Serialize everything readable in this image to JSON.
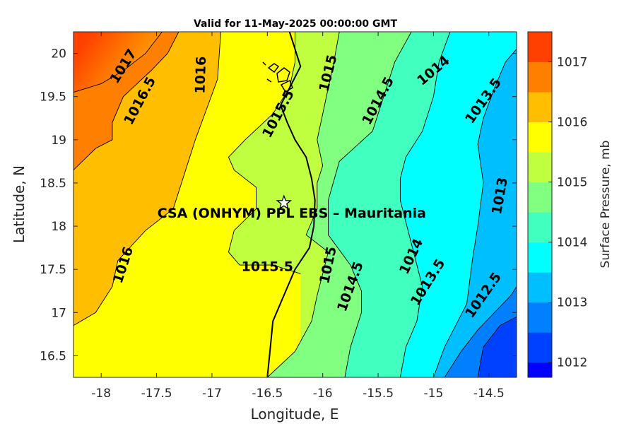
{
  "chart_data": {
    "type": "heatmap",
    "subtype": "filled-contour",
    "title": "Valid for 11-May-2025 00:00:00 GMT",
    "xlabel": "Longitude, E",
    "ylabel": "Latitude, N",
    "xlim": [
      -18.25,
      -14.25
    ],
    "ylim": [
      16.25,
      20.25
    ],
    "xticks": [
      "-18",
      "-17.5",
      "-17",
      "-16.5",
      "-16",
      "-15.5",
      "-15",
      "-14.5"
    ],
    "xtick_values": [
      -18,
      -17.5,
      -17,
      -16.5,
      -16,
      -15.5,
      -15,
      -14.5
    ],
    "yticks": [
      "16.5",
      "17",
      "17.5",
      "18",
      "18.5",
      "19",
      "19.5",
      "20"
    ],
    "ytick_values": [
      16.5,
      17,
      17.5,
      18,
      18.5,
      19,
      19.5,
      20
    ],
    "colorbar": {
      "label": "Surface Pressure, mb",
      "range": [
        1011.75,
        1017.5
      ],
      "ticks": [
        "1012",
        "1013",
        "1014",
        "1015",
        "1016",
        "1017"
      ],
      "tick_values": [
        1012,
        1013,
        1014,
        1015,
        1016,
        1017
      ],
      "levels": [
        1011.75,
        1012,
        1012.5,
        1013,
        1013.5,
        1014,
        1014.5,
        1015,
        1015.5,
        1016,
        1016.5,
        1017,
        1017.5
      ],
      "colors": [
        "#0000ff",
        "#0040ff",
        "#0080ff",
        "#00bfff",
        "#00ffff",
        "#40ffbf",
        "#80ff80",
        "#bfff40",
        "#ffff00",
        "#ffbf00",
        "#ff8000",
        "#ff4000",
        "#ff0000"
      ]
    },
    "isobars": [
      {
        "level": 1017,
        "points": [
          [
            -18.25,
            19.55
          ],
          [
            -18.0,
            19.65
          ],
          [
            -17.8,
            19.8
          ],
          [
            -17.6,
            20.0
          ],
          [
            -17.45,
            20.25
          ]
        ]
      },
      {
        "level": 1016.5,
        "points": [
          [
            -18.25,
            18.65
          ],
          [
            -18.05,
            18.9
          ],
          [
            -17.9,
            19.0
          ],
          [
            -17.9,
            19.2
          ],
          [
            -17.8,
            19.5
          ],
          [
            -17.55,
            19.8
          ],
          [
            -17.4,
            20.0
          ],
          [
            -17.3,
            20.25
          ]
        ]
      },
      {
        "level": 1016,
        "points": [
          [
            -18.25,
            16.85
          ],
          [
            -18.05,
            17.0
          ],
          [
            -17.9,
            17.3
          ],
          [
            -17.85,
            17.6
          ],
          [
            -17.6,
            17.95
          ],
          [
            -17.35,
            18.2
          ],
          [
            -17.25,
            18.6
          ],
          [
            -17.15,
            19.0
          ],
          [
            -17.05,
            19.35
          ],
          [
            -16.95,
            19.7
          ],
          [
            -16.92,
            20.25
          ]
        ]
      },
      {
        "level": 1015.5,
        "points": [
          [
            -16.2,
            17.45
          ],
          [
            -16.45,
            17.55
          ],
          [
            -16.75,
            17.55
          ],
          [
            -16.85,
            17.7
          ],
          [
            -16.8,
            17.95
          ],
          [
            -16.6,
            18.2
          ],
          [
            -16.6,
            18.45
          ],
          [
            -16.8,
            18.65
          ],
          [
            -16.85,
            18.8
          ],
          [
            -16.7,
            19.0
          ],
          [
            -16.45,
            19.3
          ],
          [
            -16.3,
            19.6
          ],
          [
            -16.25,
            19.9
          ],
          [
            -16.25,
            20.25
          ]
        ]
      },
      {
        "level": 1015,
        "points": [
          [
            -16.5,
            16.25
          ],
          [
            -16.25,
            16.55
          ],
          [
            -16.1,
            16.9
          ],
          [
            -16.05,
            17.2
          ],
          [
            -16.0,
            17.45
          ],
          [
            -15.95,
            17.7
          ],
          [
            -16.15,
            17.9
          ],
          [
            -16.05,
            18.2
          ],
          [
            -16.05,
            18.5
          ],
          [
            -16.0,
            18.7
          ],
          [
            -16.05,
            19.0
          ],
          [
            -16.0,
            19.3
          ],
          [
            -15.95,
            19.6
          ],
          [
            -15.9,
            19.9
          ],
          [
            -15.85,
            20.25
          ]
        ]
      },
      {
        "level": 1014.5,
        "points": [
          [
            -15.8,
            16.25
          ],
          [
            -15.75,
            16.6
          ],
          [
            -15.65,
            17.0
          ],
          [
            -15.65,
            17.25
          ],
          [
            -15.75,
            17.55
          ],
          [
            -15.95,
            17.9
          ],
          [
            -15.95,
            18.3
          ],
          [
            -15.85,
            18.75
          ],
          [
            -15.55,
            19.1
          ],
          [
            -15.45,
            19.5
          ],
          [
            -15.35,
            19.9
          ],
          [
            -15.2,
            20.25
          ]
        ]
      },
      {
        "level": 1014,
        "points": [
          [
            -15.3,
            16.25
          ],
          [
            -15.25,
            16.6
          ],
          [
            -15.15,
            16.9
          ],
          [
            -15.1,
            17.3
          ],
          [
            -15.2,
            17.8
          ],
          [
            -15.3,
            18.3
          ],
          [
            -15.3,
            18.55
          ],
          [
            -15.25,
            18.8
          ],
          [
            -15.1,
            19.1
          ],
          [
            -15.0,
            19.5
          ],
          [
            -14.95,
            19.9
          ],
          [
            -14.85,
            20.25
          ]
        ]
      },
      {
        "level": 1013.5,
        "points": [
          [
            -15.0,
            16.25
          ],
          [
            -14.9,
            16.6
          ],
          [
            -14.8,
            16.85
          ],
          [
            -14.7,
            17.1
          ],
          [
            -14.65,
            17.6
          ],
          [
            -14.6,
            18.0
          ],
          [
            -14.55,
            18.5
          ],
          [
            -14.6,
            18.95
          ],
          [
            -14.55,
            19.25
          ],
          [
            -14.45,
            19.6
          ],
          [
            -14.35,
            19.9
          ],
          [
            -14.25,
            20.05
          ]
        ]
      },
      {
        "level": 1013,
        "points": [
          [
            -14.9,
            16.25
          ],
          [
            -14.75,
            16.55
          ],
          [
            -14.6,
            16.8
          ],
          [
            -14.45,
            17.0
          ],
          [
            -14.3,
            17.2
          ],
          [
            -14.25,
            17.3
          ]
        ]
      },
      {
        "level": 1012.5,
        "points": [
          [
            -14.6,
            16.25
          ],
          [
            -14.55,
            16.6
          ],
          [
            -14.4,
            16.85
          ],
          [
            -14.25,
            16.95
          ]
        ]
      }
    ],
    "contour_labels": [
      {
        "text": "1017",
        "lon": -17.8,
        "lat": 19.85,
        "angle": -58
      },
      {
        "text": "1016.5",
        "lon": -17.65,
        "lat": 19.45,
        "angle": -62
      },
      {
        "text": "1016",
        "lon": -17.1,
        "lat": 19.75,
        "angle": -88
      },
      {
        "text": "1015.5",
        "lon": -16.4,
        "lat": 19.3,
        "angle": -62
      },
      {
        "text": "1015",
        "lon": -15.95,
        "lat": 19.77,
        "angle": -76
      },
      {
        "text": "1014.5",
        "lon": -15.5,
        "lat": 19.45,
        "angle": -62
      },
      {
        "text": "1014",
        "lon": -15.0,
        "lat": 19.8,
        "angle": -40
      },
      {
        "text": "1013.5",
        "lon": -14.55,
        "lat": 19.45,
        "angle": -55
      },
      {
        "text": "1013",
        "lon": -14.4,
        "lat": 18.35,
        "angle": -80
      },
      {
        "text": "1012.5",
        "lon": -14.55,
        "lat": 17.2,
        "angle": -55
      },
      {
        "text": "1016",
        "lon": -17.8,
        "lat": 17.55,
        "angle": -72
      },
      {
        "text": "1015.5",
        "lon": -16.5,
        "lat": 17.53,
        "angle": 0
      },
      {
        "text": "1015",
        "lon": -15.95,
        "lat": 17.55,
        "angle": -78
      },
      {
        "text": "1014.5",
        "lon": -15.75,
        "lat": 17.3,
        "angle": -70
      },
      {
        "text": "1014",
        "lon": -15.2,
        "lat": 17.65,
        "angle": -65
      },
      {
        "text": "1013.5",
        "lon": -15.05,
        "lat": 17.35,
        "angle": -58
      }
    ],
    "coastline": [
      [
        -16.5,
        16.25
      ],
      [
        -16.48,
        16.5
      ],
      [
        -16.45,
        16.9
      ],
      [
        -16.35,
        17.2
      ],
      [
        -16.25,
        17.5
      ],
      [
        -16.12,
        17.75
      ],
      [
        -16.08,
        18.0
      ],
      [
        -16.07,
        18.3
      ],
      [
        -16.1,
        18.55
      ],
      [
        -16.15,
        18.8
      ],
      [
        -16.25,
        19.0
      ],
      [
        -16.32,
        19.2
      ],
      [
        -16.38,
        19.4
      ],
      [
        -16.3,
        19.6
      ],
      [
        -16.2,
        19.85
      ],
      [
        -16.25,
        20.05
      ],
      [
        -16.3,
        20.25
      ]
    ],
    "site": {
      "name": "CSA (ONHYM) PPL EBS  – Mauritania",
      "lon": -16.35,
      "lat": 18.27
    }
  }
}
